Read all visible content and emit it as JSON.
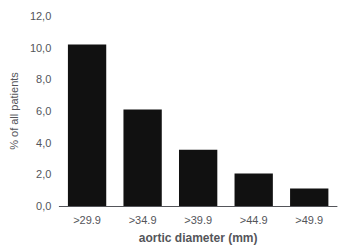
{
  "chart_data": {
    "type": "bar",
    "categories": [
      ">29.9",
      ">34.9",
      ">39.9",
      ">44.9",
      ">49.9"
    ],
    "values": [
      10.2,
      6.1,
      3.55,
      2.05,
      1.1
    ],
    "color": "#111111",
    "xlabel": "aortic diameter (mm)",
    "ylabel": "% of all patients",
    "ylim": [
      0,
      12.0
    ],
    "yticks": [
      {
        "value": 0.0,
        "label": "0,0"
      },
      {
        "value": 2.0,
        "label": "2,0"
      },
      {
        "value": 4.0,
        "label": "4,0"
      },
      {
        "value": 6.0,
        "label": "6,0"
      },
      {
        "value": 8.0,
        "label": "8,0"
      },
      {
        "value": 10.0,
        "label": "10,0"
      },
      {
        "value": 12.0,
        "label": "12,0"
      }
    ],
    "grid": false
  }
}
